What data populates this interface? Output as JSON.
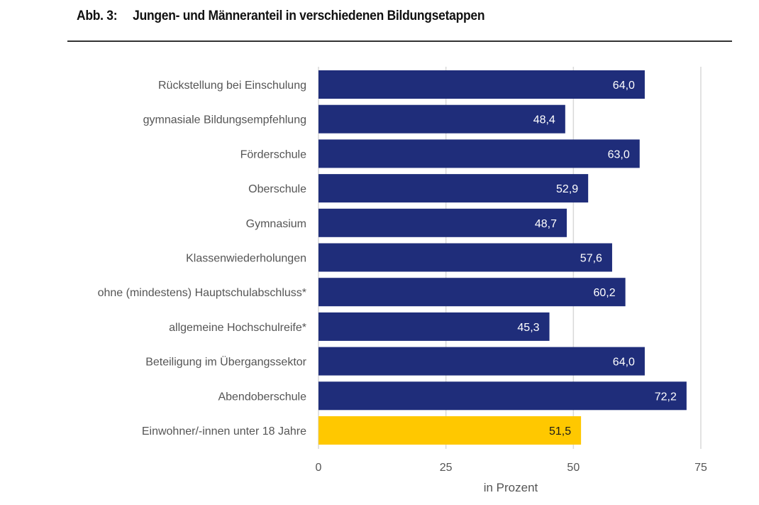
{
  "chart_data": {
    "type": "bar",
    "orientation": "horizontal",
    "figure_label": "Abb. 3:",
    "title": "Jungen- und Männeranteil in verschiedenen Bildungsetappen",
    "categories": [
      "Rückstellung bei Einschulung",
      "gymnasiale  Bildungsempfehlung",
      "Förderschule",
      "Oberschule",
      "Gymnasium",
      "Klassenwiederholungen",
      "ohne (mindestens) Hauptschulabschluss*",
      "allgemeine Hochschulreife*",
      "Beteiligung im Übergangssektor",
      "Abendoberschule",
      "Einwohner/-innen unter 18 Jahre"
    ],
    "values": [
      64.0,
      48.4,
      63.0,
      52.9,
      48.7,
      57.6,
      60.2,
      45.3,
      64.0,
      72.2,
      51.5
    ],
    "value_labels": [
      "64,0",
      "48,4",
      "63,0",
      "52,9",
      "48,7",
      "57,6",
      "60,2",
      "45,3",
      "64,0",
      "72,2",
      "51,5"
    ],
    "bar_colors": [
      "#1f2d7a",
      "#1f2d7a",
      "#1f2d7a",
      "#1f2d7a",
      "#1f2d7a",
      "#1f2d7a",
      "#1f2d7a",
      "#1f2d7a",
      "#1f2d7a",
      "#1f2d7a",
      "#ffc800"
    ],
    "label_colors": [
      "#ffffff",
      "#ffffff",
      "#ffffff",
      "#ffffff",
      "#ffffff",
      "#ffffff",
      "#ffffff",
      "#ffffff",
      "#ffffff",
      "#ffffff",
      "#1a1a1a"
    ],
    "xlabel": "in Prozent",
    "ylabel": "",
    "xlim": [
      0,
      75
    ],
    "xticks": [
      0,
      25,
      50,
      75
    ],
    "xtick_labels": [
      "0",
      "25",
      "50",
      "75"
    ],
    "grid": true,
    "legend": "none"
  }
}
